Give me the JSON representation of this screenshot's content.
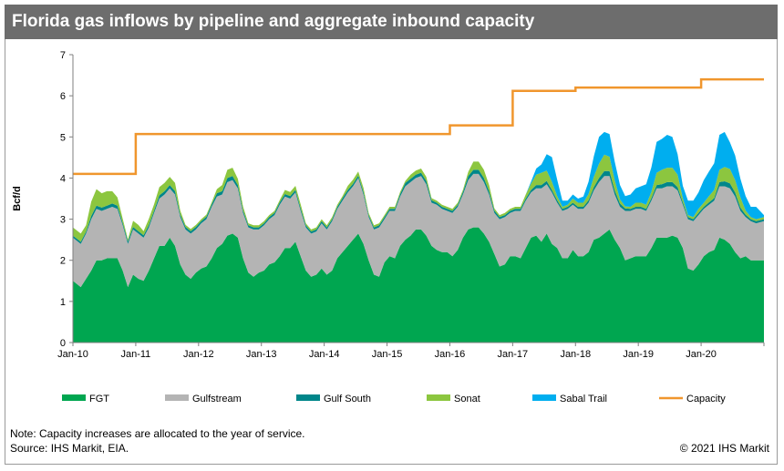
{
  "title": "Florida gas inflows by pipeline and aggregate inbound capacity",
  "note": "Note: Capacity increases are allocated to the year of service.",
  "source": "Source: IHS Markit, EIA.",
  "copyright": "© 2021 IHS Markit",
  "chart_data": {
    "type": "area",
    "stacked": true,
    "ylabel": "Bcf/d",
    "ylim": [
      0,
      7
    ],
    "yticks": [
      0,
      1,
      2,
      3,
      4,
      5,
      6,
      7
    ],
    "xlim": [
      "Jan-10",
      "Dec-20"
    ],
    "xtick_labels": [
      "Jan-10",
      "Jan-11",
      "Jan-12",
      "Jan-13",
      "Jan-14",
      "Jan-15",
      "Jan-16",
      "Jan-17",
      "Jan-18",
      "Jan-19",
      "Jan-20"
    ],
    "legend_position": "bottom",
    "grid": false,
    "series": [
      {
        "name": "FGT",
        "color": "#00a650",
        "kind": "area",
        "years": {
          "2010": [
            1.5,
            1.35,
            1.55,
            1.75,
            2.0,
            2.0,
            2.05,
            2.05,
            2.05,
            1.75,
            1.35,
            1.65
          ],
          "2011": [
            1.55,
            1.5,
            1.75,
            2.05,
            2.35,
            2.35,
            2.55,
            2.35,
            1.9,
            1.65,
            1.55,
            1.7
          ],
          "2012": [
            1.8,
            1.85,
            2.05,
            2.3,
            2.4,
            2.6,
            2.65,
            2.55,
            2.05,
            1.7,
            1.6,
            1.7
          ],
          "2013": [
            1.75,
            1.9,
            1.95,
            2.1,
            2.3,
            2.3,
            2.45,
            2.1,
            1.75,
            1.6,
            1.65,
            1.8
          ],
          "2014": [
            1.65,
            1.75,
            2.05,
            2.2,
            2.35,
            2.5,
            2.65,
            2.4,
            2.0,
            1.65,
            1.6,
            1.95
          ],
          "2015": [
            2.1,
            2.05,
            2.35,
            2.5,
            2.6,
            2.75,
            2.75,
            2.6,
            2.35,
            2.25,
            2.2,
            2.2
          ],
          "2016": [
            2.1,
            2.25,
            2.55,
            2.75,
            2.8,
            2.8,
            2.65,
            2.45,
            2.15,
            1.85,
            1.9,
            2.1
          ],
          "2017": [
            2.1,
            2.05,
            2.3,
            2.55,
            2.6,
            2.45,
            2.65,
            2.4,
            2.3,
            2.05,
            2.05,
            2.25
          ],
          "2018": [
            2.1,
            2.1,
            2.2,
            2.5,
            2.55,
            2.65,
            2.75,
            2.5,
            2.3,
            2.0,
            2.05,
            2.1
          ],
          "2019": [
            2.1,
            2.1,
            2.3,
            2.55,
            2.55,
            2.55,
            2.6,
            2.55,
            2.3,
            1.8,
            1.75,
            1.9
          ],
          "2020": [
            2.1,
            2.2,
            2.25,
            2.55,
            2.5,
            2.4,
            2.2,
            2.05,
            2.1,
            2.0,
            2.0,
            2.0
          ]
        }
      },
      {
        "name": "Gulfstream",
        "color": "#b4b4b4",
        "kind": "area",
        "years": {
          "2010": [
            1.05,
            1.05,
            1.1,
            1.25,
            1.25,
            1.2,
            1.2,
            1.25,
            1.2,
            1.1,
            1.05,
            1.1
          ],
          "2011": [
            1.1,
            1.05,
            1.05,
            1.1,
            1.15,
            1.25,
            1.2,
            1.25,
            1.15,
            1.1,
            1.1,
            1.05
          ],
          "2012": [
            1.1,
            1.15,
            1.25,
            1.25,
            1.2,
            1.3,
            1.3,
            1.2,
            1.1,
            1.1,
            1.15,
            1.05
          ],
          "2013": [
            1.1,
            1.1,
            1.15,
            1.25,
            1.25,
            1.2,
            1.2,
            1.1,
            1.05,
            1.05,
            1.05,
            1.1
          ],
          "2014": [
            1.1,
            1.2,
            1.2,
            1.25,
            1.3,
            1.3,
            1.35,
            1.2,
            1.05,
            1.1,
            1.2,
            1.05
          ],
          "2015": [
            1.1,
            1.15,
            1.2,
            1.3,
            1.3,
            1.25,
            1.3,
            1.25,
            1.05,
            1.1,
            1.05,
            1.0
          ],
          "2016": [
            1.05,
            1.05,
            1.05,
            1.2,
            1.3,
            1.3,
            1.25,
            1.15,
            1.0,
            1.15,
            1.15,
            1.05
          ],
          "2017": [
            1.1,
            1.15,
            1.15,
            1.1,
            1.15,
            1.3,
            1.2,
            1.25,
            1.1,
            1.15,
            1.2,
            1.1
          ],
          "2018": [
            1.15,
            1.15,
            1.2,
            1.2,
            1.35,
            1.4,
            1.3,
            1.1,
            1.0,
            1.2,
            1.15,
            1.15
          ],
          "2019": [
            1.15,
            1.1,
            1.15,
            1.2,
            1.2,
            1.25,
            1.2,
            1.15,
            1.05,
            1.2,
            1.2,
            1.2
          ],
          "2020": [
            1.15,
            1.15,
            1.2,
            1.25,
            1.3,
            1.35,
            1.35,
            1.15,
            0.95,
            0.95,
            0.9,
            0.95
          ]
        }
      },
      {
        "name": "Gulf South",
        "color": "#00868a",
        "kind": "area",
        "years": {
          "2010": [
            0.05,
            0.05,
            0.05,
            0.08,
            0.08,
            0.08,
            0.08,
            0.08,
            0.08,
            0.06,
            0.06,
            0.06
          ],
          "2011": [
            0.06,
            0.06,
            0.06,
            0.06,
            0.08,
            0.08,
            0.08,
            0.08,
            0.06,
            0.06,
            0.06,
            0.06
          ],
          "2012": [
            0.05,
            0.06,
            0.06,
            0.08,
            0.08,
            0.1,
            0.1,
            0.08,
            0.06,
            0.05,
            0.05,
            0.05
          ],
          "2013": [
            0.05,
            0.05,
            0.05,
            0.06,
            0.06,
            0.06,
            0.06,
            0.06,
            0.05,
            0.05,
            0.05,
            0.05
          ],
          "2014": [
            0.05,
            0.05,
            0.05,
            0.06,
            0.06,
            0.06,
            0.06,
            0.06,
            0.05,
            0.05,
            0.05,
            0.05
          ],
          "2015": [
            0.05,
            0.05,
            0.06,
            0.08,
            0.08,
            0.08,
            0.08,
            0.08,
            0.06,
            0.05,
            0.05,
            0.05
          ],
          "2016": [
            0.05,
            0.05,
            0.06,
            0.1,
            0.1,
            0.1,
            0.1,
            0.08,
            0.06,
            0.05,
            0.05,
            0.05
          ],
          "2017": [
            0.05,
            0.05,
            0.05,
            0.06,
            0.08,
            0.08,
            0.08,
            0.06,
            0.06,
            0.05,
            0.05,
            0.05
          ],
          "2018": [
            0.05,
            0.05,
            0.06,
            0.08,
            0.1,
            0.12,
            0.12,
            0.1,
            0.08,
            0.06,
            0.05,
            0.05
          ],
          "2019": [
            0.05,
            0.05,
            0.06,
            0.08,
            0.1,
            0.1,
            0.1,
            0.08,
            0.06,
            0.05,
            0.05,
            0.05
          ],
          "2020": [
            0.05,
            0.06,
            0.06,
            0.1,
            0.12,
            0.12,
            0.1,
            0.08,
            0.06,
            0.05,
            0.05,
            0.05
          ]
        }
      },
      {
        "name": "Sonat",
        "color": "#8cc63f",
        "kind": "area",
        "years": {
          "2010": [
            0.2,
            0.2,
            0.15,
            0.35,
            0.4,
            0.35,
            0.35,
            0.3,
            0.2,
            0.1,
            0.05,
            0.15
          ],
          "2011": [
            0.15,
            0.1,
            0.15,
            0.15,
            0.2,
            0.2,
            0.2,
            0.2,
            0.1,
            0.05,
            0.05,
            0.05
          ],
          "2012": [
            0.05,
            0.05,
            0.05,
            0.1,
            0.15,
            0.2,
            0.2,
            0.15,
            0.1,
            0.05,
            0.05,
            0.05
          ],
          "2013": [
            0.05,
            0.05,
            0.05,
            0.05,
            0.1,
            0.1,
            0.1,
            0.1,
            0.05,
            0.05,
            0.05,
            0.05
          ],
          "2014": [
            0.05,
            0.05,
            0.05,
            0.05,
            0.1,
            0.1,
            0.1,
            0.1,
            0.05,
            0.05,
            0.05,
            0.05
          ],
          "2015": [
            0.05,
            0.05,
            0.05,
            0.05,
            0.1,
            0.1,
            0.1,
            0.1,
            0.05,
            0.05,
            0.05,
            0.05
          ],
          "2016": [
            0.05,
            0.05,
            0.05,
            0.1,
            0.2,
            0.2,
            0.2,
            0.15,
            0.05,
            0.05,
            0.05,
            0.05
          ],
          "2017": [
            0.05,
            0.05,
            0.1,
            0.15,
            0.25,
            0.3,
            0.25,
            0.2,
            0.1,
            0.05,
            0.05,
            0.1
          ],
          "2018": [
            0.1,
            0.1,
            0.15,
            0.25,
            0.35,
            0.4,
            0.35,
            0.25,
            0.1,
            0.05,
            0.05,
            0.1
          ],
          "2019": [
            0.1,
            0.1,
            0.15,
            0.3,
            0.35,
            0.35,
            0.35,
            0.3,
            0.1,
            0.05,
            0.05,
            0.1
          ],
          "2020": [
            0.1,
            0.15,
            0.2,
            0.3,
            0.35,
            0.35,
            0.3,
            0.25,
            0.1,
            0.05,
            0.05,
            0.05
          ]
        }
      },
      {
        "name": "Sabal Trail",
        "color": "#00aeef",
        "kind": "area",
        "years": {
          "2010": [
            0,
            0,
            0,
            0,
            0,
            0,
            0,
            0,
            0,
            0,
            0,
            0
          ],
          "2011": [
            0,
            0,
            0,
            0,
            0,
            0,
            0,
            0,
            0,
            0,
            0,
            0
          ],
          "2012": [
            0,
            0,
            0,
            0,
            0,
            0,
            0,
            0,
            0,
            0,
            0,
            0
          ],
          "2013": [
            0,
            0,
            0,
            0,
            0,
            0,
            0,
            0,
            0,
            0,
            0,
            0
          ],
          "2014": [
            0,
            0,
            0,
            0,
            0,
            0,
            0,
            0,
            0,
            0,
            0,
            0
          ],
          "2015": [
            0,
            0,
            0,
            0,
            0,
            0,
            0,
            0,
            0,
            0,
            0,
            0
          ],
          "2016": [
            0,
            0,
            0,
            0,
            0,
            0,
            0,
            0,
            0,
            0,
            0,
            0
          ],
          "2017": [
            0,
            0,
            0,
            0.05,
            0.15,
            0.2,
            0.4,
            0.6,
            0.4,
            0.15,
            0.1,
            0.1
          ],
          "2018": [
            0.1,
            0.15,
            0.3,
            0.5,
            0.65,
            0.55,
            0.55,
            0.45,
            0.35,
            0.25,
            0.3,
            0.35
          ],
          "2019": [
            0.4,
            0.5,
            0.6,
            0.75,
            0.75,
            0.8,
            0.75,
            0.5,
            0.3,
            0.35,
            0.4,
            0.4
          ],
          "2020": [
            0.55,
            0.6,
            0.65,
            0.85,
            0.85,
            0.65,
            0.6,
            0.45,
            0.35,
            0.25,
            0.3,
            0.05
          ]
        }
      },
      {
        "name": "Capacity",
        "color": "#f0962d",
        "kind": "step-line",
        "steps": [
          {
            "from": "Jan-10",
            "value": 4.1
          },
          {
            "from": "Jan-11",
            "value": 5.07
          },
          {
            "from": "Jan-16",
            "value": 5.28
          },
          {
            "from": "Jan-17",
            "value": 6.12
          },
          {
            "from": "Jan-18",
            "value": 6.2
          },
          {
            "from": "Jan-20",
            "value": 6.4
          }
        ]
      }
    ]
  }
}
